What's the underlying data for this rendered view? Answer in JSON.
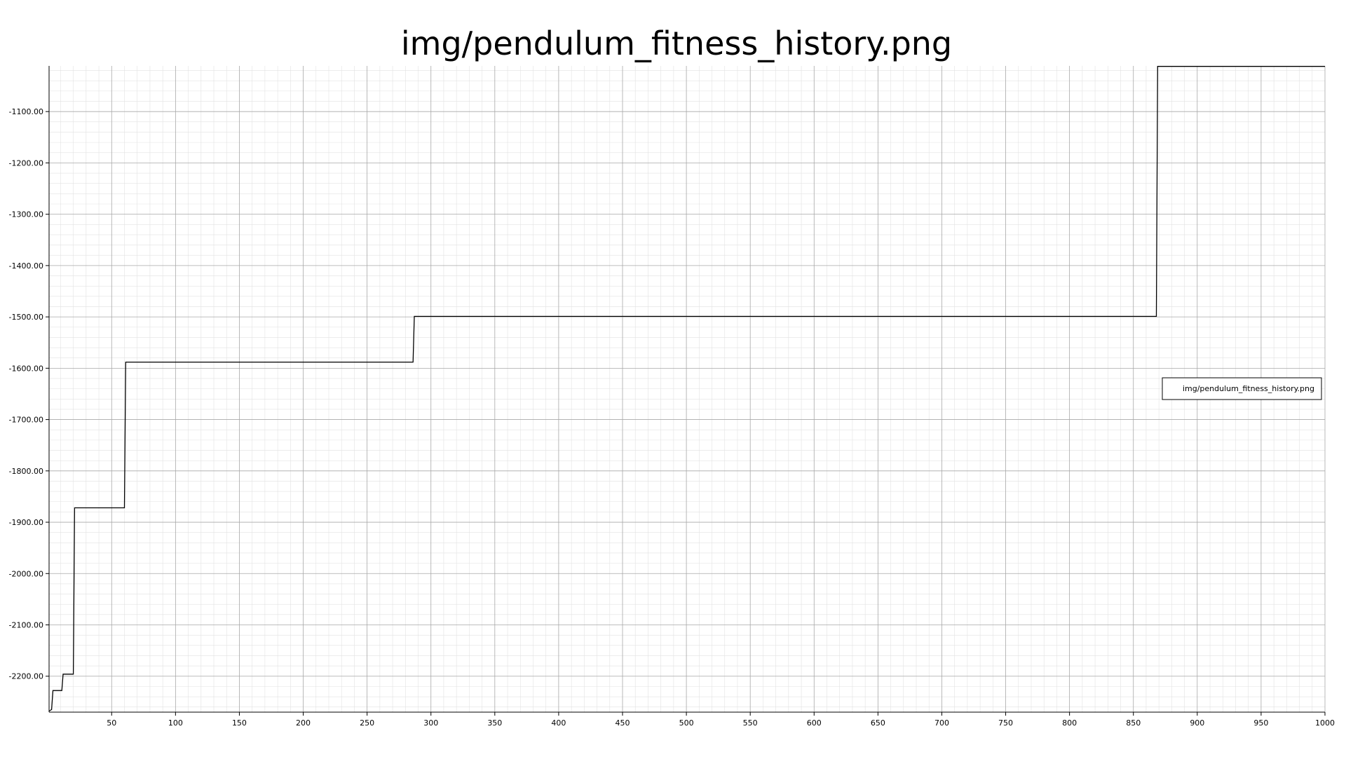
{
  "chart_data": {
    "type": "line",
    "title": "img/pendulum_fitness_history.png",
    "xlabel": "",
    "ylabel": "",
    "xlim": [
      1,
      1000
    ],
    "ylim": [
      -2270,
      -1011
    ],
    "x_ticks": [
      50,
      100,
      150,
      200,
      250,
      300,
      350,
      400,
      450,
      500,
      550,
      600,
      650,
      700,
      750,
      800,
      850,
      900,
      950,
      1000
    ],
    "x_tick_labels": [
      "50",
      "100",
      "150",
      "200",
      "250",
      "300",
      "350",
      "400",
      "450",
      "500",
      "550",
      "600",
      "650",
      "700",
      "750",
      "800",
      "850",
      "900",
      "950",
      "1000"
    ],
    "y_ticks": [
      -1100,
      -1200,
      -1300,
      -1400,
      -1500,
      -1600,
      -1700,
      -1800,
      -1900,
      -2000,
      -2100,
      -2200
    ],
    "y_tick_labels": [
      "-1100.00",
      "-1200.00",
      "-1300.00",
      "-1400.00",
      "-1500.00",
      "-1600.00",
      "-1700.00",
      "-1800.00",
      "-1900.00",
      "-2000.00",
      "-2100.00",
      "-2200.00"
    ],
    "grid": true,
    "minor_grid": true,
    "legend_position": "right",
    "series": [
      {
        "name": "img/pendulum_fitness_history.png",
        "color": "#000000",
        "x": [
          1,
          3,
          4,
          11,
          12,
          20,
          21,
          60,
          61,
          286,
          287,
          868,
          869,
          1000
        ],
        "y": [
          -2268,
          -2265,
          -2228,
          -2228,
          -2196,
          -2196,
          -1872,
          -1872,
          -1588,
          -1588,
          -1499,
          -1499,
          -1012,
          -1012
        ]
      }
    ]
  }
}
